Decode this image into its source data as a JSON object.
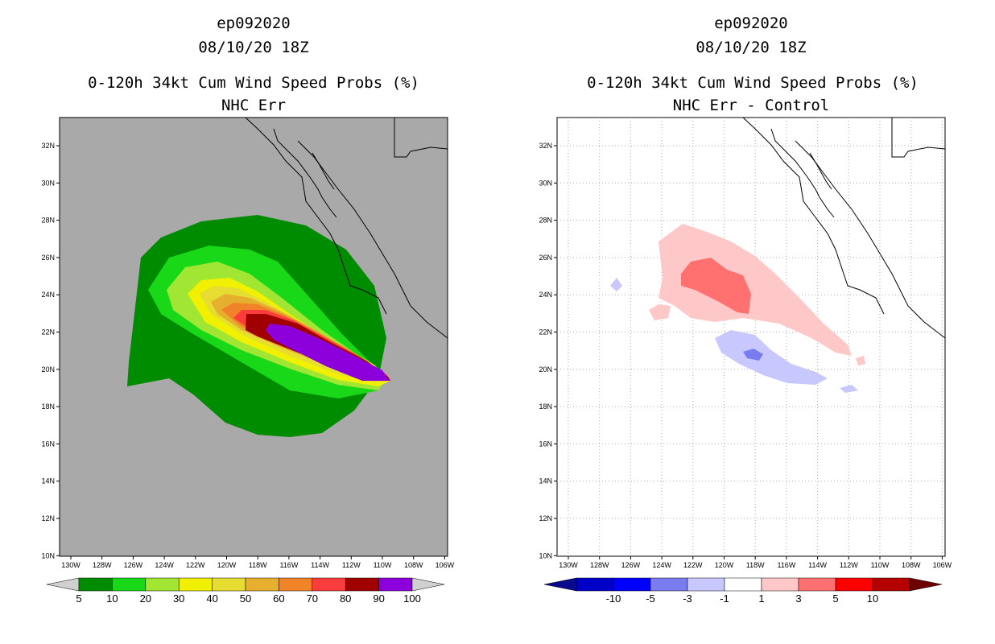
{
  "left": {
    "storm_id": "ep092020",
    "datetime": "08/10/20 18Z",
    "title": "0-120h 34kt Cum Wind Speed Probs (%)",
    "subtitle": "NHC Err",
    "background_color": "#a9a9a9",
    "lat_labels": [
      "32N",
      "30N",
      "28N",
      "26N",
      "24N",
      "22N",
      "20N",
      "18N",
      "16N",
      "14N",
      "12N",
      "10N"
    ],
    "lon_labels": [
      "130W",
      "128W",
      "126W",
      "124W",
      "122W",
      "120W",
      "118W",
      "116W",
      "114W",
      "112W",
      "110W",
      "108W",
      "106W"
    ],
    "colorbar": {
      "colors": [
        "#008c00",
        "#18d818",
        "#a0e632",
        "#f0f000",
        "#e6dc32",
        "#e6af2d",
        "#f08228",
        "#fa3c3c",
        "#a00000",
        "#8c00dc"
      ],
      "labels": [
        "5",
        "10",
        "20",
        "30",
        "40",
        "50",
        "60",
        "70",
        "80",
        "90",
        "100"
      ]
    }
  },
  "right": {
    "storm_id": "ep092020",
    "datetime": "08/10/20 18Z",
    "title": "0-120h 34kt Cum Wind Speed Probs (%)",
    "subtitle": "NHC Err - Control",
    "lat_labels": [
      "32N",
      "30N",
      "28N",
      "26N",
      "24N",
      "22N",
      "20N",
      "18N",
      "16N",
      "14N",
      "12N",
      "10N"
    ],
    "lon_labels": [
      "130W",
      "128W",
      "126W",
      "124W",
      "122W",
      "120W",
      "118W",
      "116W",
      "114W",
      "112W",
      "110W",
      "108W",
      "106W"
    ],
    "colorbar": {
      "colors": [
        "#0000c8",
        "#0000ff",
        "#7b7bf0",
        "#c8c8ff",
        "#ffffff",
        "#ffc8c8",
        "#ff7070",
        "#ff0000",
        "#b40000"
      ],
      "labels": [
        "-10",
        "-5",
        "-3",
        "-1",
        "1",
        "3",
        "5",
        "10"
      ]
    }
  }
}
